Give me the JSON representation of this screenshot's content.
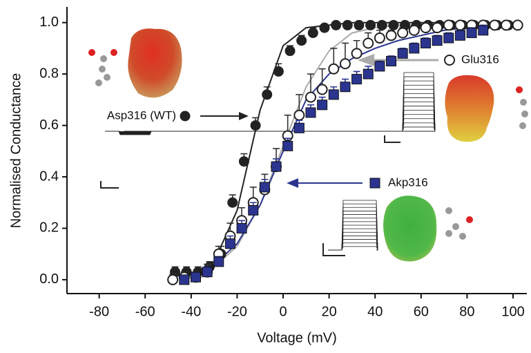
{
  "chart_data": {
    "type": "scatter",
    "xlabel": "Voltage (mV)",
    "ylabel": "Normalised Conductance",
    "xlim": [
      -94,
      106
    ],
    "ylim": [
      -0.054,
      1.061
    ],
    "xticks": [
      -80,
      -60,
      -40,
      -20,
      0,
      20,
      40,
      60,
      80,
      100
    ],
    "yticks": [
      {
        "value": 0,
        "label": "0.0"
      },
      0.2,
      0.4,
      0.6,
      0.8,
      {
        "value": 1,
        "label": "1.0"
      }
    ],
    "series": [
      {
        "name": "Asp316 (WT)",
        "color": "#222222",
        "marker": "filled-circle",
        "x": [
          -47,
          -42,
          -37,
          -32,
          -27,
          -22,
          -17,
          -12,
          -7,
          -2,
          3,
          8,
          13,
          18,
          23,
          28,
          33,
          38,
          43,
          48,
          53,
          58,
          63,
          68,
          73,
          78,
          83,
          88,
          93,
          98
        ],
        "values": [
          0.03,
          0.03,
          0.03,
          0.05,
          0.1,
          0.3,
          0.46,
          0.6,
          0.72,
          0.81,
          0.89,
          0.93,
          0.96,
          0.98,
          0.99,
          0.99,
          0.99,
          0.99,
          0.99,
          0.99,
          0.99,
          0.99,
          0.99,
          0.99,
          0.99,
          0.99,
          0.99,
          0.99,
          0.99,
          0.99
        ],
        "errors": [
          0.02,
          0.02,
          0.02,
          0.02,
          0.03,
          0.03,
          0.03,
          0.03,
          0.03,
          0.03,
          0.02,
          0.02,
          0.02,
          0.01,
          0.01,
          0.01,
          0.01,
          0.01,
          0.01,
          0.01,
          0.01,
          0.01,
          0.01,
          0.01,
          0.01,
          0.01,
          0.01,
          0.01,
          0.01,
          0.01
        ],
        "fit_x": [
          -50,
          -40,
          -30,
          -20,
          -10,
          0,
          10,
          20,
          30,
          40,
          50,
          60,
          70,
          80,
          90,
          100
        ],
        "fit": [
          0.01,
          0.02,
          0.07,
          0.27,
          0.66,
          0.91,
          0.98,
          0.99,
          1,
          1,
          1,
          1,
          1,
          1,
          1,
          1
        ]
      },
      {
        "name": "Glu316",
        "color": "#aaaaaa",
        "marker": "open-circle",
        "x": [
          -48,
          -43,
          -38,
          -33,
          -28,
          -23,
          -18,
          -13,
          -8,
          -3,
          2,
          7,
          12,
          17,
          22,
          27,
          32,
          37,
          42,
          47,
          52,
          57,
          62,
          67,
          72,
          77,
          82,
          87,
          92,
          97,
          102
        ],
        "values": [
          0.0,
          0.01,
          0.01,
          0.03,
          0.1,
          0.17,
          0.23,
          0.3,
          0.35,
          0.44,
          0.56,
          0.64,
          0.71,
          0.74,
          0.82,
          0.84,
          0.88,
          0.92,
          0.94,
          0.95,
          0.96,
          0.97,
          0.98,
          0.98,
          0.99,
          0.99,
          0.99,
          0.99,
          0.99,
          0.99,
          0.99
        ],
        "errors": [
          0.02,
          0.02,
          0.02,
          0.03,
          0.03,
          0.05,
          0.05,
          0.06,
          0.06,
          0.07,
          0.08,
          0.08,
          0.09,
          0.08,
          0.08,
          0.08,
          0.05,
          0.04,
          0.03,
          0.02,
          0.02,
          0.02,
          0.02,
          0.01,
          0.01,
          0.01,
          0.01,
          0.01,
          0.01,
          0.01,
          0.01
        ],
        "fit_x": [
          -50,
          -40,
          -30,
          -20,
          -10,
          0,
          10,
          20,
          30,
          40,
          50,
          60,
          70,
          80,
          90,
          100
        ],
        "fit": [
          0.01,
          0.02,
          0.05,
          0.13,
          0.29,
          0.52,
          0.75,
          0.89,
          0.96,
          0.98,
          0.99,
          0.99,
          1,
          1,
          1,
          1
        ]
      },
      {
        "name": "Akp316",
        "color": "#2b3590",
        "marker": "square",
        "x": [
          -43,
          -38,
          -33,
          -28,
          -23,
          -18,
          -13,
          -8,
          -3,
          2,
          7,
          12,
          17,
          22,
          27,
          32,
          37,
          42,
          47,
          52,
          57,
          62,
          67,
          72,
          77,
          82,
          87
        ],
        "values": [
          0.0,
          0.01,
          0.03,
          0.07,
          0.14,
          0.2,
          0.27,
          0.36,
          0.44,
          0.52,
          0.59,
          0.65,
          0.68,
          0.72,
          0.75,
          0.78,
          0.8,
          0.83,
          0.85,
          0.88,
          0.9,
          0.92,
          0.93,
          0.94,
          0.95,
          0.96,
          0.97
        ],
        "errors": [
          0.01,
          0.01,
          0.02,
          0.02,
          0.03,
          0.03,
          0.03,
          0.03,
          0.03,
          0.03,
          0.03,
          0.03,
          0.03,
          0.03,
          0.03,
          0.03,
          0.03,
          0.02,
          0.02,
          0.02,
          0.02,
          0.02,
          0.02,
          0.02,
          0.02,
          0.02,
          0.02
        ],
        "fit_x": [
          -50,
          -40,
          -30,
          -20,
          -10,
          0,
          10,
          20,
          30,
          40,
          50,
          60,
          70,
          80,
          90,
          100
        ],
        "fit": [
          0.01,
          0.025,
          0.06,
          0.14,
          0.29,
          0.5,
          0.7,
          0.8,
          0.86,
          0.9,
          0.93,
          0.95,
          0.97,
          0.98,
          0.99,
          0.99
        ]
      }
    ]
  }
}
